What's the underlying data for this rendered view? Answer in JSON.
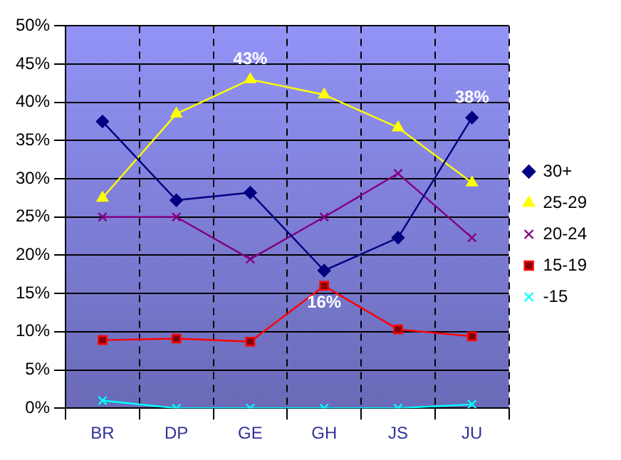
{
  "chart_data": {
    "type": "line",
    "categories": [
      "BR",
      "DP",
      "GE",
      "GH",
      "JS",
      "JU"
    ],
    "series": [
      {
        "name": "30+",
        "color": "#000080",
        "marker": "diamond",
        "values": [
          37.5,
          27.2,
          28.2,
          18.0,
          22.3,
          38
        ]
      },
      {
        "name": "25-29",
        "color": "#ffff00",
        "marker": "triangle",
        "values": [
          27.5,
          38.5,
          43,
          41.0,
          36.7,
          29.5
        ]
      },
      {
        "name": "20-24",
        "color": "#800080",
        "marker": "cross",
        "values": [
          25.0,
          25.0,
          19.5,
          25.0,
          30.7,
          22.3
        ]
      },
      {
        "name": "15-19",
        "color": "#ff0000",
        "marker": "square",
        "values": [
          8.9,
          9.1,
          8.7,
          16,
          10.3,
          9.4
        ]
      },
      {
        "name": "-15",
        "color": "#00ffff",
        "marker": "cross",
        "values": [
          1.0,
          0,
          0,
          0,
          0,
          0.5
        ]
      }
    ],
    "ylim": [
      0,
      50
    ],
    "yticks": [
      {
        "value": 0,
        "label": "0%"
      },
      {
        "value": 5,
        "label": "5%"
      },
      {
        "value": 10,
        "label": "10%"
      },
      {
        "value": 15,
        "label": "15%"
      },
      {
        "value": 20,
        "label": "20%"
      },
      {
        "value": 25,
        "label": "25%"
      },
      {
        "value": 30,
        "label": "30%"
      },
      {
        "value": 35,
        "label": "35%"
      },
      {
        "value": 40,
        "label": "40%"
      },
      {
        "value": 45,
        "label": "45%"
      },
      {
        "value": 50,
        "label": "50%"
      }
    ],
    "grid": true,
    "legend": "right",
    "annotations": [
      {
        "text": "43%",
        "x": "GE",
        "y": 43
      },
      {
        "text": "38%",
        "x": "JU",
        "y": 38
      },
      {
        "text": "16%",
        "x": "GH",
        "y": 16
      }
    ]
  }
}
